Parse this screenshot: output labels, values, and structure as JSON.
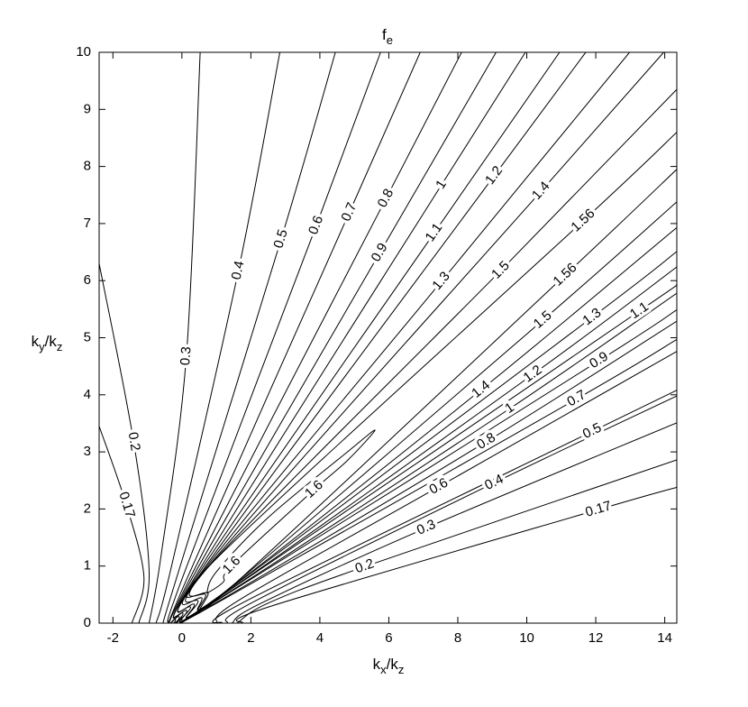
{
  "chart_data": {
    "type": "contour",
    "title": [
      {
        "text": "f"
      },
      {
        "text": "e",
        "sub": true
      }
    ],
    "xlabel": [
      {
        "text": "k"
      },
      {
        "text": "x",
        "sub": true
      },
      {
        "text": "/k"
      },
      {
        "text": "z",
        "sub": true
      }
    ],
    "ylabel": [
      {
        "text": "k"
      },
      {
        "text": "y",
        "sub": true
      },
      {
        "text": "/k"
      },
      {
        "text": "z",
        "sub": true
      }
    ],
    "xlim": [
      -2.4,
      14.35
    ],
    "ylim": [
      0,
      10
    ],
    "xticks": [
      -2,
      0,
      2,
      4,
      6,
      8,
      10,
      12,
      14
    ],
    "yticks": [
      0,
      1,
      2,
      3,
      4,
      5,
      6,
      7,
      8,
      9,
      10
    ],
    "color": "#000000",
    "contours": [
      {
        "level": 0.17,
        "x": [
          -2.4,
          -1.61,
          -1.1,
          -1.45,
          null,
          1.75,
          2.6,
          12.08,
          14.35
        ],
        "y": [
          3.45,
          2.07,
          0.8,
          0,
          null,
          0,
          0.3,
          1.99,
          2.38
        ],
        "labels": [
          [
            -1.61,
            2.07
          ],
          [
            12.08,
            1.99
          ]
        ]
      },
      {
        "level": 0.2,
        "x": [
          -2.4,
          -1.4,
          -0.95,
          -1.25,
          null,
          1.6,
          2.5,
          5.3,
          14.35
        ],
        "y": [
          6.3,
          3.18,
          0.9,
          0,
          null,
          0,
          0.35,
          0.99,
          2.86
        ],
        "labels": [
          [
            -1.4,
            3.18
          ],
          [
            5.3,
            0.99
          ]
        ]
      },
      {
        "level": 0.3,
        "x": [
          0.53,
          0.13,
          -0.6,
          -0.95,
          null,
          1.45,
          2.3,
          7.09,
          14.35
        ],
        "y": [
          10,
          4.68,
          1.2,
          0,
          null,
          0,
          0.35,
          1.67,
          3.51
        ],
        "labels": [
          [
            0.13,
            4.68
          ],
          [
            7.09,
            1.67
          ]
        ]
      },
      {
        "level": 0.4,
        "x": [
          2.84,
          1.64,
          -0.3,
          -0.75,
          null,
          1.3,
          2.1,
          9.06,
          14.35
        ],
        "y": [
          10,
          6.18,
          1.0,
          0,
          null,
          0,
          0.38,
          2.46,
          3.98
        ],
        "labels": [
          [
            1.64,
            6.18
          ],
          [
            9.06,
            2.46
          ]
        ]
      },
      {
        "level": 0.5,
        "x": [
          4.45,
          2.88,
          -0.1,
          -0.55,
          null,
          1.15,
          1.9,
          11.9,
          14.35
        ],
        "y": [
          10,
          6.73,
          0.9,
          0,
          null,
          0,
          0.4,
          3.36,
          4.08
        ],
        "labels": [
          [
            2.88,
            6.73
          ],
          [
            11.9,
            3.36
          ]
        ]
      },
      {
        "level": 0.6,
        "x": [
          5.76,
          3.9,
          0.05,
          -0.4,
          null,
          1.0,
          1.7,
          7.45,
          14.35
        ],
        "y": [
          10,
          6.97,
          0.85,
          0,
          null,
          0,
          0.42,
          2.39,
          4.76
        ],
        "labels": [
          [
            3.9,
            6.97
          ],
          [
            7.45,
            2.39
          ]
        ]
      },
      {
        "level": 0.7,
        "x": [
          6.91,
          4.86,
          0.06,
          -0.19,
          0.51,
          11.45,
          14.35
        ],
        "y": [
          10,
          7.2,
          0.66,
          0.06,
          0.18,
          3.93,
          4.97
        ],
        "labels": [
          [
            4.86,
            7.2
          ],
          [
            11.45,
            3.93
          ]
        ]
      },
      {
        "level": 0.8,
        "x": [
          8.11,
          5.92,
          0.17,
          -0.08,
          0.62,
          8.83,
          14.35
        ],
        "y": [
          10,
          7.44,
          0.71,
          0.11,
          0.23,
          3.18,
          5.29
        ],
        "labels": [
          [
            5.92,
            7.44
          ],
          [
            8.83,
            3.18
          ]
        ]
      },
      {
        "level": 0.9,
        "x": [
          9.11,
          5.74,
          0.28,
          0.03,
          0.73,
          12.1,
          14.35
        ],
        "y": [
          10,
          6.49,
          0.77,
          0.17,
          0.29,
          4.6,
          5.49
        ],
        "labels": [
          [
            5.74,
            6.49
          ],
          [
            12.1,
            4.6
          ]
        ]
      },
      {
        "level": 1,
        "x": [
          9.96,
          7.53,
          0.39,
          0.14,
          0.84,
          9.51,
          14.35
        ],
        "y": [
          10,
          7.68,
          0.82,
          0.22,
          0.34,
          3.76,
          5.78
        ],
        "labels": [
          [
            7.53,
            7.68
          ],
          [
            9.51,
            3.76
          ]
        ]
      },
      {
        "level": 1.1,
        "x": [
          10.95,
          7.32,
          0.5,
          0.25,
          0.95,
          13.27,
          14.35
        ],
        "y": [
          10,
          6.84,
          0.88,
          0.28,
          0.4,
          5.47,
          5.93
        ],
        "labels": [
          [
            7.32,
            6.84
          ],
          [
            13.27,
            5.47
          ]
        ]
      },
      {
        "level": 1.2,
        "x": [
          11.71,
          9.06,
          0.61,
          0.36,
          1.06,
          10.18,
          14.35
        ],
        "y": [
          10,
          7.84,
          0.93,
          0.33,
          0.45,
          4.36,
          6.24
        ],
        "labels": [
          [
            9.06,
            7.84
          ],
          [
            10.18,
            4.36
          ]
        ]
      },
      {
        "level": 1.3,
        "x": [
          12.98,
          7.53,
          0.72,
          0.47,
          1.17,
          11.9,
          14.35
        ],
        "y": [
          10,
          5.99,
          0.99,
          0.39,
          0.51,
          5.36,
          6.51
        ],
        "labels": [
          [
            7.53,
            5.99
          ],
          [
            11.9,
            5.36
          ]
        ]
      },
      {
        "level": 1.4,
        "x": [
          13.97,
          10.42,
          0.83,
          0.58,
          1.28,
          8.68,
          14.35
        ],
        "y": [
          10,
          7.57,
          1.04,
          0.44,
          0.56,
          4.09,
          6.93
        ],
        "labels": [
          [
            10.42,
            7.57
          ],
          [
            8.68,
            4.09
          ]
        ]
      },
      {
        "level": 1.5,
        "x": [
          14.35,
          9.25,
          0.94,
          0.69,
          1.39,
          10.47,
          14.35
        ],
        "y": [
          9.35,
          6.18,
          1.1,
          0.5,
          0.62,
          5.31,
          7.38
        ],
        "labels": [
          [
            9.25,
            6.18
          ],
          [
            10.47,
            5.31
          ]
        ]
      },
      {
        "level": 1.56,
        "x": [
          14.35,
          11.64,
          1.0,
          0.76,
          1.46,
          11.12,
          14.35
        ],
        "y": [
          8.6,
          7.05,
          1.13,
          0.53,
          0.65,
          6.1,
          7.95
        ],
        "labels": [
          [
            11.64,
            7.05
          ],
          [
            11.12,
            6.1
          ]
        ]
      },
      {
        "level": 1.6,
        "x": [
          0.72,
          1.0,
          2.5,
          4.8,
          5.6,
          4.8,
          3.84,
          1.45,
          1.2,
          0.72
        ],
        "y": [
          0.52,
          0.9,
          1.85,
          3.0,
          3.38,
          2.85,
          2.34,
          1.01,
          0.72,
          0.52
        ],
        "labels": [
          [
            1.45,
            1.01
          ],
          [
            3.84,
            2.34
          ]
        ]
      }
    ]
  }
}
